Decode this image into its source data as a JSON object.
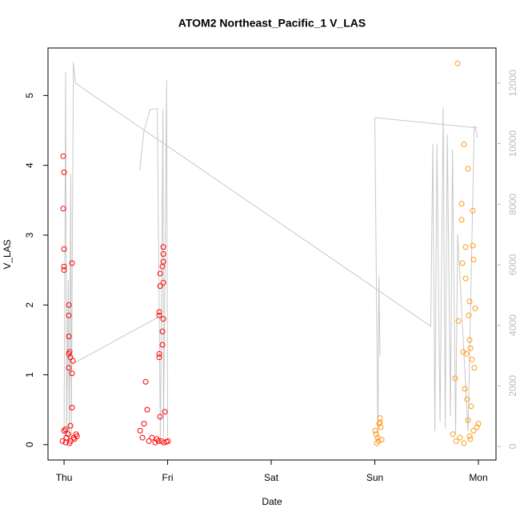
{
  "chart_data": {
    "type": "scatter",
    "title": "ATOM2 Northeast_Pacific_1 V_LAS",
    "x_label": "Date",
    "y_label": "V_LAS",
    "xlim": [
      -0.155,
      4.17
    ],
    "xticks": [
      {
        "value": 0,
        "label": "Thu"
      },
      {
        "value": 1,
        "label": "Fri"
      },
      {
        "value": 2,
        "label": "Sat"
      },
      {
        "value": 3,
        "label": "Sun"
      },
      {
        "value": 4,
        "label": "Mon"
      }
    ],
    "ylim": [
      -0.22,
      5.68
    ],
    "yticks": [
      0,
      1,
      2,
      3,
      4,
      5
    ],
    "y2lim": [
      -450,
      13160
    ],
    "y2ticks": [
      0,
      2000,
      4000,
      6000,
      8000,
      10000,
      12000
    ],
    "series": [
      {
        "color": "#ff0000",
        "x": [
          -0.008,
          0,
          -0.008,
          0,
          0,
          0,
          0.046,
          0.046,
          0.046,
          0.046,
          0.054,
          0.062,
          0.085,
          0.046,
          0.077,
          0.077,
          0.077,
          0.062,
          0.015,
          0,
          0.039,
          0.116,
          0.023,
          0.093,
          -0.015,
          0.015,
          0.062,
          0.1,
          0.054,
          0.124,
          0.734,
          0.757,
          0.772,
          0.788,
          0.803,
          0.819,
          0.849,
          0.88,
          0.911,
          0.919,
          0.919,
          0.919,
          0.919,
          0.927,
          0.927,
          0.927,
          0.95,
          0.958,
          0.958,
          0.958,
          0.958,
          0.958,
          0.95,
          0.95,
          0.973,
          0.942,
          0.965,
          0.988,
          1.004,
          0.896
        ],
        "values": [
          4.13,
          3.9,
          3.38,
          2.8,
          2.55,
          2.5,
          2.0,
          1.85,
          1.55,
          1.3,
          1.33,
          1.25,
          1.2,
          1.1,
          1.02,
          0.53,
          2.6,
          0.27,
          0.22,
          0.2,
          0.15,
          0.15,
          0.1,
          0.1,
          0.05,
          0.03,
          0.05,
          0.08,
          0.02,
          0.12,
          0.2,
          0.1,
          0.3,
          0.9,
          0.5,
          0.05,
          0.1,
          0.03,
          0.05,
          1.3,
          1.25,
          1.9,
          1.85,
          2.45,
          2.27,
          0.4,
          2.55,
          2.83,
          2.73,
          2.62,
          2.32,
          1.8,
          1.62,
          1.43,
          0.47,
          0.05,
          0.03,
          0.04,
          0.05,
          0.08
        ]
      },
      {
        "color": "#ff9a1a",
        "x": [
          3.004,
          3.012,
          3.027,
          3.042,
          3.05,
          3.05,
          3.035,
          3.066,
          3.019,
          3.058,
          3.8,
          3.776,
          3.807,
          3.838,
          3.838,
          3.846,
          3.853,
          3.861,
          3.869,
          3.876,
          3.876,
          3.884,
          3.892,
          3.9,
          3.907,
          3.915,
          3.915,
          3.923,
          3.93,
          3.938,
          3.946,
          3.946,
          3.954,
          3.969,
          3.985,
          4.0,
          3.822,
          3.753,
          3.784,
          3.923,
          3.954,
          3.861,
          3.9,
          3.915,
          3.961
        ],
        "values": [
          0.2,
          0.15,
          0.1,
          0.3,
          0.38,
          0.32,
          0.05,
          0.07,
          0.02,
          0.25,
          5.46,
          0.95,
          1.77,
          3.22,
          3.45,
          2.6,
          1.33,
          4.3,
          0.8,
          2.83,
          2.38,
          1.3,
          0.65,
          3.95,
          1.85,
          2.05,
          1.5,
          1.38,
          0.55,
          1.22,
          3.35,
          2.85,
          2.65,
          1.95,
          0.25,
          0.3,
          0.1,
          0.15,
          0.05,
          0.08,
          0.2,
          0.02,
          0.35,
          0.12,
          1.1
        ]
      },
      {
        "type": "line",
        "axis": "y2",
        "color": "#c8c8c8",
        "x": [
          0,
          0.015,
          0.025,
          0.04,
          0.05,
          0.065,
          0.07,
          0.09,
          0.11,
          3.54,
          3.56,
          3.58,
          3.6,
          3.63,
          3.66,
          3.68,
          3.7,
          3.73,
          3.75,
          3.78,
          3.8,
          3.9,
          3.96,
          3.98,
          3.99,
          null,
          0.08,
          0.93,
          null,
          0.73,
          0.77,
          0.83,
          0.9,
          0.93,
          0.955,
          0.96,
          0.99,
          1.0,
          null,
          3.0,
          3.03,
          3.04,
          3.05,
          null,
          3.0,
          3.99
        ],
        "values": [
          200,
          12370,
          300,
          5500,
          200,
          9000,
          300,
          12690,
          12000,
          3965,
          10000,
          500,
          10000,
          800,
          11200,
          600,
          10300,
          1000,
          9800,
          400,
          7000,
          500,
          10600,
          10400,
          10200,
          null,
          2720,
          4310,
          null,
          9120,
          10390,
          11130,
          11155,
          200,
          11150,
          300,
          12100,
          300,
          null,
          10860,
          200,
          5630,
          3000,
          null,
          10860,
          10520
        ]
      }
    ]
  }
}
